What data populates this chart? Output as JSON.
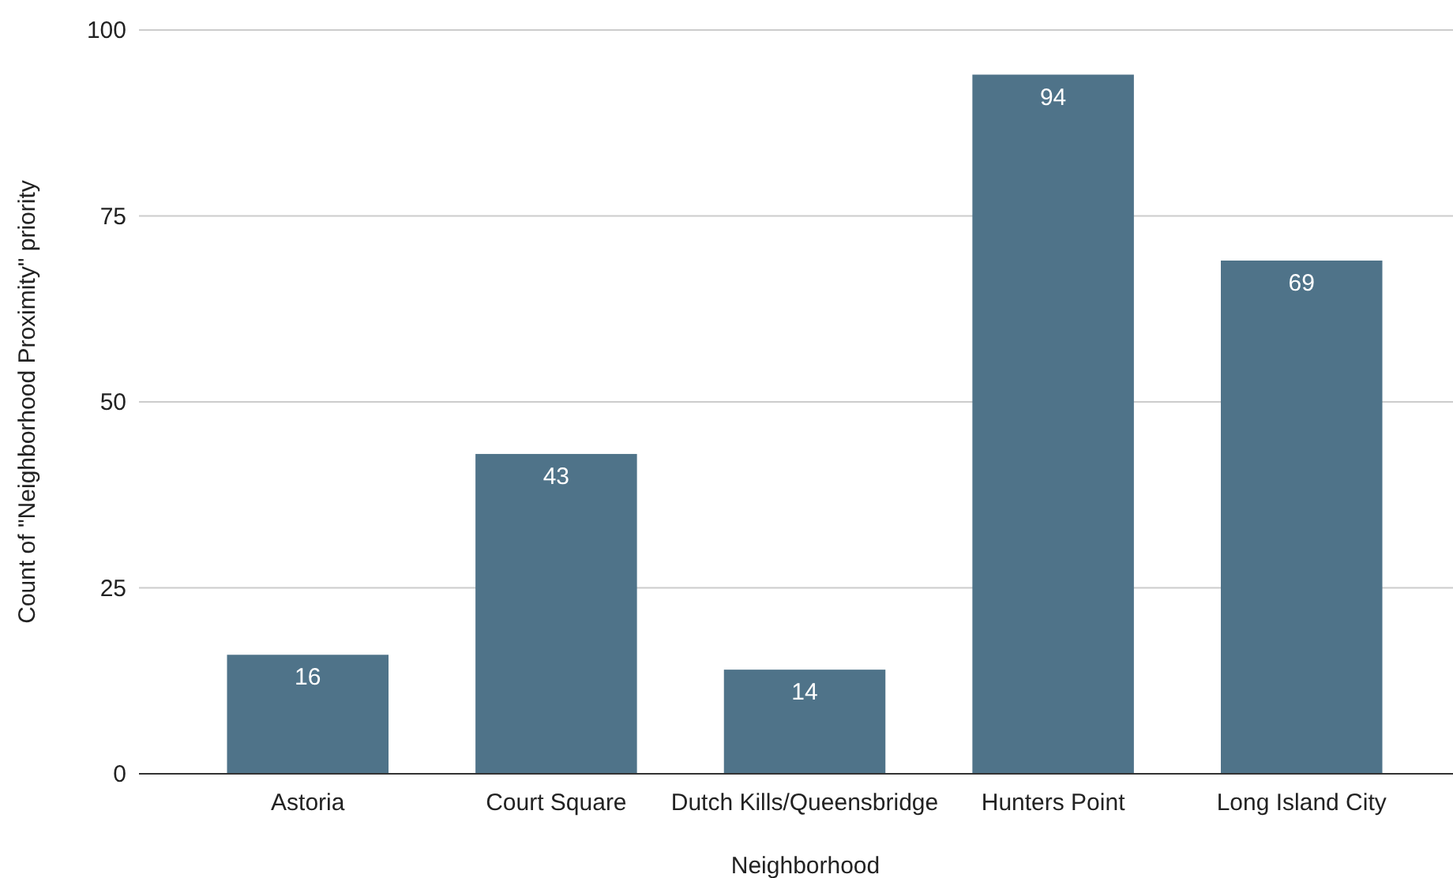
{
  "chart_data": {
    "type": "bar",
    "xlabel": "Neighborhood",
    "ylabel": "Count of \"Neighborhood Proximity\" priority",
    "categories": [
      "Astoria",
      "Court Square",
      "Dutch Kills/Queensbridge",
      "Hunters Point",
      "Long Island City"
    ],
    "values": [
      16,
      43,
      14,
      94,
      69
    ],
    "color": "#4f7389",
    "ylim": [
      0,
      100
    ],
    "yticks": [
      0,
      25,
      50,
      75,
      100
    ],
    "grid": "y",
    "data_labels": true
  }
}
